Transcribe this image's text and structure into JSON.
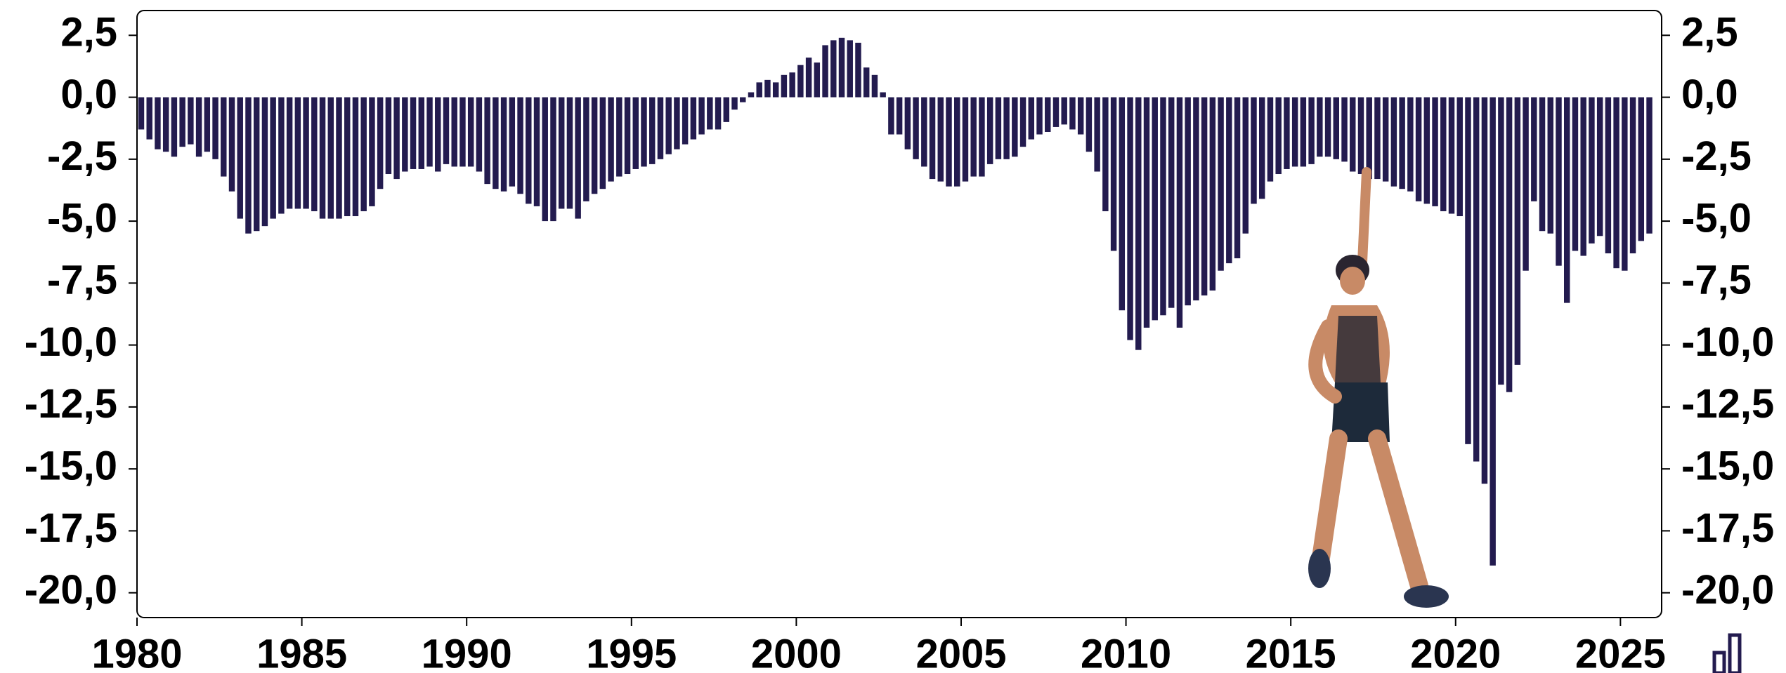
{
  "chart_data": {
    "type": "bar",
    "color": "#231b4f",
    "x": [
      1980,
      1980.25,
      1980.5,
      1980.75,
      1981,
      1981.25,
      1981.5,
      1981.75,
      1982,
      1982.25,
      1982.5,
      1982.75,
      1983,
      1983.25,
      1983.5,
      1983.75,
      1984,
      1984.25,
      1984.5,
      1984.75,
      1985,
      1985.25,
      1985.5,
      1985.75,
      1986,
      1986.25,
      1986.5,
      1986.75,
      1987,
      1987.25,
      1987.5,
      1987.75,
      1988,
      1988.25,
      1988.5,
      1988.75,
      1989,
      1989.25,
      1989.5,
      1989.75,
      1990,
      1990.25,
      1990.5,
      1990.75,
      1991,
      1991.25,
      1991.5,
      1991.75,
      1992,
      1992.25,
      1992.5,
      1992.75,
      1993,
      1993.25,
      1993.5,
      1993.75,
      1994,
      1994.25,
      1994.5,
      1994.75,
      1995,
      1995.25,
      1995.5,
      1995.75,
      1996,
      1996.25,
      1996.5,
      1996.75,
      1997,
      1997.25,
      1997.5,
      1997.75,
      1998,
      1998.25,
      1998.5,
      1998.75,
      1999,
      1999.25,
      1999.5,
      1999.75,
      2000,
      2000.25,
      2000.5,
      2000.75,
      2001,
      2001.25,
      2001.5,
      2001.75,
      2002,
      2002.25,
      2002.5,
      2002.75,
      2003,
      2003.25,
      2003.5,
      2003.75,
      2004,
      2004.25,
      2004.5,
      2004.75,
      2005,
      2005.25,
      2005.5,
      2005.75,
      2006,
      2006.25,
      2006.5,
      2006.75,
      2007,
      2007.25,
      2007.5,
      2007.75,
      2008,
      2008.25,
      2008.5,
      2008.75,
      2009,
      2009.25,
      2009.5,
      2009.75,
      2010,
      2010.25,
      2010.5,
      2010.75,
      2011,
      2011.25,
      2011.5,
      2011.75,
      2012,
      2012.25,
      2012.5,
      2012.75,
      2013,
      2013.25,
      2013.5,
      2013.75,
      2014,
      2014.25,
      2014.5,
      2014.75,
      2015,
      2015.25,
      2015.5,
      2015.75,
      2016,
      2016.25,
      2016.5,
      2016.75,
      2017,
      2017.25,
      2017.5,
      2017.75,
      2018,
      2018.25,
      2018.5,
      2018.75,
      2019,
      2019.25,
      2019.5,
      2019.75,
      2020,
      2020.25,
      2020.5,
      2020.75,
      2021,
      2021.25,
      2021.5,
      2021.75,
      2022,
      2022.25,
      2022.5,
      2022.75,
      2023,
      2023.25,
      2023.5,
      2023.75,
      2024,
      2024.25,
      2024.5,
      2024.75,
      2025,
      2025.25,
      2025.5,
      2025.75
    ],
    "values": [
      -1.3,
      -1.7,
      -2.1,
      -2.2,
      -2.4,
      -2.0,
      -1.9,
      -2.4,
      -2.2,
      -2.5,
      -3.2,
      -3.8,
      -4.9,
      -5.5,
      -5.4,
      -5.2,
      -4.9,
      -4.7,
      -4.5,
      -4.5,
      -4.5,
      -4.6,
      -4.9,
      -4.9,
      -4.9,
      -4.8,
      -4.8,
      -4.6,
      -4.4,
      -3.7,
      -3.1,
      -3.3,
      -3.0,
      -2.9,
      -2.9,
      -2.8,
      -3.0,
      -2.7,
      -2.8,
      -2.8,
      -2.8,
      -3.0,
      -3.5,
      -3.7,
      -3.8,
      -3.6,
      -3.9,
      -4.3,
      -4.4,
      -5.0,
      -5.0,
      -4.5,
      -4.5,
      -4.9,
      -4.2,
      -3.9,
      -3.7,
      -3.4,
      -3.2,
      -3.1,
      -2.9,
      -2.8,
      -2.7,
      -2.5,
      -2.3,
      -2.1,
      -1.9,
      -1.7,
      -1.5,
      -1.3,
      -1.3,
      -1.0,
      -0.5,
      -0.2,
      0.2,
      0.6,
      0.7,
      0.6,
      0.9,
      1.0,
      1.3,
      1.6,
      1.4,
      2.1,
      2.3,
      2.4,
      2.3,
      2.2,
      1.2,
      0.9,
      0.2,
      -1.5,
      -1.5,
      -2.1,
      -2.5,
      -2.8,
      -3.3,
      -3.4,
      -3.6,
      -3.6,
      -3.4,
      -3.2,
      -3.2,
      -2.7,
      -2.5,
      -2.5,
      -2.4,
      -2.0,
      -1.7,
      -1.5,
      -1.4,
      -1.2,
      -1.1,
      -1.3,
      -1.5,
      -2.2,
      -3.0,
      -4.6,
      -6.2,
      -8.6,
      -9.8,
      -10.2,
      -9.3,
      -9.0,
      -8.8,
      -8.5,
      -9.3,
      -8.4,
      -8.2,
      -8.0,
      -7.8,
      -7.0,
      -6.7,
      -6.5,
      -5.5,
      -4.3,
      -4.1,
      -3.4,
      -3.1,
      -2.9,
      -2.8,
      -2.8,
      -2.7,
      -2.4,
      -2.4,
      -2.5,
      -2.6,
      -3.0,
      -3.1,
      -3.3,
      -3.3,
      -3.4,
      -3.6,
      -3.7,
      -3.8,
      -4.2,
      -4.3,
      -4.4,
      -4.6,
      -4.7,
      -4.8,
      -14.0,
      -14.7,
      -15.6,
      -18.9,
      -11.6,
      -11.9,
      -10.8,
      -7.0,
      -4.2,
      -5.4,
      -5.5,
      -6.8,
      -8.3,
      -6.2,
      -6.4,
      -5.9,
      -5.6,
      -6.3,
      -6.9,
      -7.0,
      -6.3,
      -5.8,
      -5.5
    ],
    "xlim": [
      1980,
      2026.25
    ],
    "xticks": [
      1980,
      1985,
      1990,
      1995,
      2000,
      2005,
      2010,
      2015,
      2020,
      2025
    ],
    "ylim": [
      -21,
      3.5
    ],
    "yticks": [
      {
        "value": 2.5,
        "label": "2,5"
      },
      {
        "value": 0,
        "label": "0,0"
      },
      {
        "value": -2.5,
        "label": "-2,5"
      },
      {
        "value": -5,
        "label": "-5,0"
      },
      {
        "value": -7.5,
        "label": "-7,5"
      },
      {
        "value": -10,
        "label": "-10,0"
      },
      {
        "value": -12.5,
        "label": "-12,5"
      },
      {
        "value": -15,
        "label": "-15,0"
      },
      {
        "value": -17.5,
        "label": "-17,5"
      },
      {
        "value": -20,
        "label": "-20,0"
      }
    ]
  }
}
